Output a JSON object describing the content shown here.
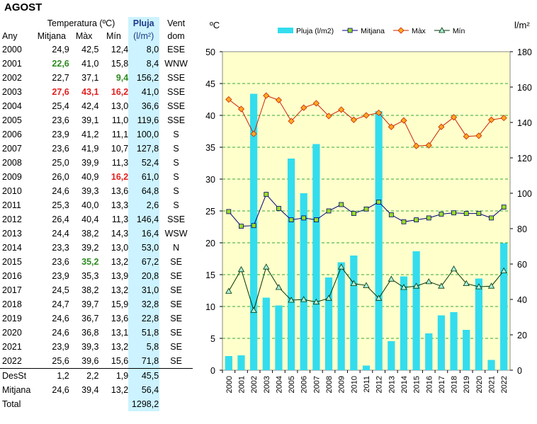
{
  "title": "AGOST",
  "table": {
    "headers": {
      "temperatura": "Temperatura (ºC)",
      "any": "Any",
      "mitjana": "Mitjana",
      "max": "Màx",
      "min": "Mín",
      "pluja": "Pluja",
      "pluja_unit": "(l/m²)",
      "vent": "Vent",
      "vent2": "dom"
    },
    "rows": [
      {
        "year": "2000",
        "mitjana": "24,9",
        "max": "42,5",
        "min": "12,4",
        "pluja": "8,0",
        "vent": "ESE"
      },
      {
        "year": "2001",
        "mitjana": "22,6",
        "max": "41,0",
        "min": "15,8",
        "pluja": "8,4",
        "vent": "WNW"
      },
      {
        "year": "2002",
        "mitjana": "22,7",
        "max": "37,1",
        "min": "9,4",
        "pluja": "156,2",
        "vent": "SSE"
      },
      {
        "year": "2003",
        "mitjana": "27,6",
        "max": "43,1",
        "min": "16,2",
        "pluja": "41,0",
        "vent": "SSE"
      },
      {
        "year": "2004",
        "mitjana": "25,4",
        "max": "42,4",
        "min": "13,0",
        "pluja": "36,6",
        "vent": "SSE"
      },
      {
        "year": "2005",
        "mitjana": "23,6",
        "max": "39,1",
        "min": "11,0",
        "pluja": "119,6",
        "vent": "SSE"
      },
      {
        "year": "2006",
        "mitjana": "23,9",
        "max": "41,2",
        "min": "11,1",
        "pluja": "100,0",
        "vent": "S"
      },
      {
        "year": "2007",
        "mitjana": "23,6",
        "max": "41,9",
        "min": "10,7",
        "pluja": "127,8",
        "vent": "S"
      },
      {
        "year": "2008",
        "mitjana": "25,0",
        "max": "39,9",
        "min": "11,3",
        "pluja": "52,4",
        "vent": "S"
      },
      {
        "year": "2009",
        "mitjana": "26,0",
        "max": "40,9",
        "min": "16,2",
        "pluja": "61,0",
        "vent": "S"
      },
      {
        "year": "2010",
        "mitjana": "24,6",
        "max": "39,3",
        "min": "13,6",
        "pluja": "64,8",
        "vent": "S"
      },
      {
        "year": "2011",
        "mitjana": "25,3",
        "max": "40,0",
        "min": "13,3",
        "pluja": "2,6",
        "vent": "S"
      },
      {
        "year": "2012",
        "mitjana": "26,4",
        "max": "40,4",
        "min": "11,3",
        "pluja": "146,4",
        "vent": "SSE"
      },
      {
        "year": "2013",
        "mitjana": "24,4",
        "max": "38,2",
        "min": "14,3",
        "pluja": "16,4",
        "vent": "WSW"
      },
      {
        "year": "2014",
        "mitjana": "23,3",
        "max": "39,2",
        "min": "13,0",
        "pluja": "53,0",
        "vent": "N"
      },
      {
        "year": "2015",
        "mitjana": "23,6",
        "max": "35,2",
        "min": "13,2",
        "pluja": "67,2",
        "vent": "SE"
      },
      {
        "year": "2016",
        "mitjana": "23,9",
        "max": "35,3",
        "min": "13,9",
        "pluja": "20,8",
        "vent": "SE"
      },
      {
        "year": "2017",
        "mitjana": "24,5",
        "max": "38,2",
        "min": "13,2",
        "pluja": "31,0",
        "vent": "SE"
      },
      {
        "year": "2018",
        "mitjana": "24,7",
        "max": "39,7",
        "min": "15,9",
        "pluja": "32,8",
        "vent": "SE"
      },
      {
        "year": "2019",
        "mitjana": "24,6",
        "max": "36,7",
        "min": "13,6",
        "pluja": "22,8",
        "vent": "SE"
      },
      {
        "year": "2020",
        "mitjana": "24,6",
        "max": "36,8",
        "min": "13,1",
        "pluja": "51,8",
        "vent": "SE"
      },
      {
        "year": "2021",
        "mitjana": "23,9",
        "max": "39,3",
        "min": "13,2",
        "pluja": "5,8",
        "vent": "SE"
      },
      {
        "year": "2022",
        "mitjana": "25,6",
        "max": "39,6",
        "min": "15,6",
        "pluja": "71,8",
        "vent": "SE"
      }
    ],
    "highlights": [
      {
        "row": 1,
        "col": "mitjana",
        "color": "green"
      },
      {
        "row": 2,
        "col": "min",
        "color": "green"
      },
      {
        "row": 3,
        "col": "mitjana",
        "color": "red"
      },
      {
        "row": 3,
        "col": "max",
        "color": "red"
      },
      {
        "row": 3,
        "col": "min",
        "color": "red"
      },
      {
        "row": 9,
        "col": "min",
        "color": "red"
      },
      {
        "row": 15,
        "col": "max",
        "color": "green"
      }
    ],
    "summary": [
      {
        "label": "DesSt",
        "mitjana": "1,2",
        "max": "2,2",
        "min": "1,9",
        "pluja": "45,5"
      },
      {
        "label": "Mitjana",
        "mitjana": "24,6",
        "max": "39,4",
        "min": "13,2",
        "pluja": "56,4"
      },
      {
        "label": "Total",
        "mitjana": "",
        "max": "",
        "min": "",
        "pluja": "1298,2"
      }
    ]
  },
  "chart_data": {
    "type": "bar",
    "x": [
      "2000",
      "2001",
      "2002",
      "2003",
      "2004",
      "2005",
      "2006",
      "2007",
      "2008",
      "2009",
      "2010",
      "2011",
      "2012",
      "2013",
      "2014",
      "2015",
      "2016",
      "2017",
      "2018",
      "2019",
      "2020",
      "2021",
      "2022"
    ],
    "left_axis": {
      "label": "ºC",
      "range": [
        0,
        50
      ],
      "ticks": [
        0,
        5,
        10,
        15,
        20,
        25,
        30,
        35,
        40,
        45,
        50
      ]
    },
    "right_axis": {
      "label": "l/m²",
      "range": [
        0,
        180
      ],
      "ticks": [
        0,
        20,
        40,
        60,
        80,
        100,
        120,
        140,
        160,
        180
      ]
    },
    "grid": true,
    "legend_position": "top",
    "series": [
      {
        "name": "Pluja (l/m2)",
        "type": "bar",
        "axis": "right",
        "color": "#33ddee",
        "values": [
          8.0,
          8.4,
          156.2,
          41.0,
          36.6,
          119.6,
          100.0,
          127.8,
          52.4,
          61.0,
          64.8,
          2.6,
          146.4,
          16.4,
          53.0,
          67.2,
          20.8,
          31.0,
          32.8,
          22.8,
          51.8,
          5.8,
          71.8
        ]
      },
      {
        "name": "Mitjana",
        "type": "line",
        "axis": "left",
        "color": "#000080",
        "marker": "square",
        "marker_color": "#99dd22",
        "values": [
          24.9,
          22.6,
          22.7,
          27.6,
          25.4,
          23.6,
          23.9,
          23.6,
          25.0,
          26.0,
          24.6,
          25.3,
          26.4,
          24.4,
          23.3,
          23.6,
          23.9,
          24.5,
          24.7,
          24.6,
          24.6,
          23.9,
          25.6
        ]
      },
      {
        "name": "Màx",
        "type": "line",
        "axis": "left",
        "color": "#cc2200",
        "marker": "diamond",
        "marker_color": "#ffaa22",
        "values": [
          42.5,
          41.0,
          37.1,
          43.1,
          42.4,
          39.1,
          41.2,
          41.9,
          39.9,
          40.9,
          39.3,
          40.0,
          40.4,
          38.2,
          39.2,
          35.2,
          35.3,
          38.2,
          39.7,
          36.7,
          36.8,
          39.3,
          39.6
        ]
      },
      {
        "name": "Mín",
        "type": "line",
        "axis": "left",
        "color": "#003300",
        "marker": "triangle",
        "marker_color": "#aaeedd",
        "values": [
          12.4,
          15.8,
          9.4,
          16.2,
          13.0,
          11.0,
          11.1,
          10.7,
          11.3,
          16.2,
          13.6,
          13.3,
          11.3,
          14.3,
          13.0,
          13.2,
          13.9,
          13.2,
          15.9,
          13.6,
          13.1,
          13.2,
          15.6
        ]
      }
    ]
  }
}
